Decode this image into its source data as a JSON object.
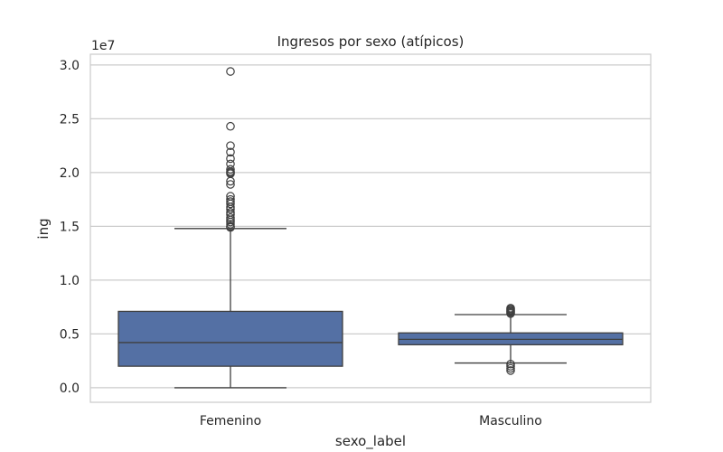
{
  "chart_data": {
    "type": "box",
    "title": "Ingresos por sexo (atípicos)",
    "xlabel": "sexo_label",
    "ylabel": "ing",
    "y_offset_label": "1e7",
    "y_multiplier": 10000000,
    "ylim": [
      -1350000,
      31000000
    ],
    "y_ticks": [
      0,
      5000000,
      10000000,
      15000000,
      20000000,
      25000000,
      30000000
    ],
    "y_tick_labels": [
      "0.0",
      "0.5",
      "1.0",
      "1.5",
      "2.0",
      "2.5",
      "3.0"
    ],
    "grid": true,
    "box_color": "#5470a4",
    "line_color": "#3f3f3f",
    "categories": [
      "Femenino",
      "Masculino"
    ],
    "boxes": [
      {
        "category": "Femenino",
        "whisker_low": 0,
        "q1": 2000000,
        "median": 4200000,
        "q3": 7100000,
        "whisker_high": 14800000,
        "outliers": [
          29400000,
          24300000,
          22500000,
          21900000,
          21300000,
          20800000,
          20300000,
          20100000,
          20000000,
          19900000,
          19200000,
          18900000,
          17800000,
          17500000,
          17300000,
          17100000,
          16800000,
          16600000,
          16300000,
          16100000,
          15800000,
          15600000,
          15400000,
          15200000,
          15000000,
          14900000
        ]
      },
      {
        "category": "Masculino",
        "whisker_low": 2300000,
        "q1": 4000000,
        "median": 4500000,
        "q3": 5100000,
        "whisker_high": 6800000,
        "outliers": [
          7400000,
          7300000,
          7200000,
          7100000,
          7000000,
          6900000,
          2200000,
          2000000,
          1800000,
          1600000
        ]
      }
    ]
  }
}
